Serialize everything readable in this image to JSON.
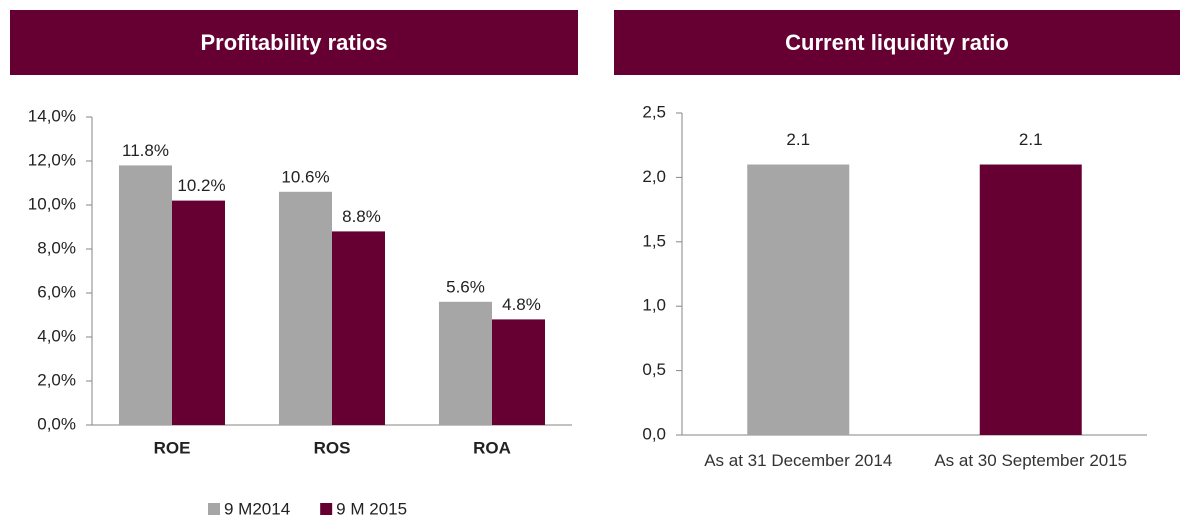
{
  "chart_data": [
    {
      "type": "bar",
      "title": "Profitability ratios",
      "categories": [
        "ROE",
        "ROS",
        "ROA"
      ],
      "series": [
        {
          "name": "9 M2014",
          "color": "#a6a6a6",
          "values": [
            11.8,
            10.6,
            5.6
          ],
          "value_labels": [
            "11.8%",
            "10.6%",
            "5.6%"
          ]
        },
        {
          "name": "9 M 2015",
          "color": "#660033",
          "values": [
            10.2,
            8.8,
            4.8
          ],
          "value_labels": [
            "10.2%",
            "8.8%",
            "4.8%"
          ]
        }
      ],
      "ylim": [
        0,
        14
      ],
      "yticks": [
        {
          "value": 0,
          "label": "0,0%"
        },
        {
          "value": 2,
          "label": "2,0%"
        },
        {
          "value": 4,
          "label": "4,0%"
        },
        {
          "value": 6,
          "label": "6,0%"
        },
        {
          "value": 8,
          "label": "8,0%"
        },
        {
          "value": 10,
          "label": "10,0%"
        },
        {
          "value": 12,
          "label": "12,0%"
        },
        {
          "value": 14,
          "label": "14,0%"
        }
      ],
      "legend": "bottom"
    },
    {
      "type": "bar",
      "title": "Current liquidity ratio",
      "categories": [
        "As at 31 December 2014",
        "As at 30 September 2015"
      ],
      "values": [
        2.1,
        2.1
      ],
      "colors": [
        "#a6a6a6",
        "#660033"
      ],
      "ylim": [
        0,
        2.5
      ],
      "yticks": [
        {
          "value": 0,
          "label": "0,0"
        },
        {
          "value": 0.5,
          "label": "0,5"
        },
        {
          "value": 1,
          "label": "1,0"
        },
        {
          "value": 1.5,
          "label": "1,5"
        },
        {
          "value": 2,
          "label": "2,0"
        },
        {
          "value": 2.5,
          "label": "2,5"
        }
      ]
    }
  ]
}
